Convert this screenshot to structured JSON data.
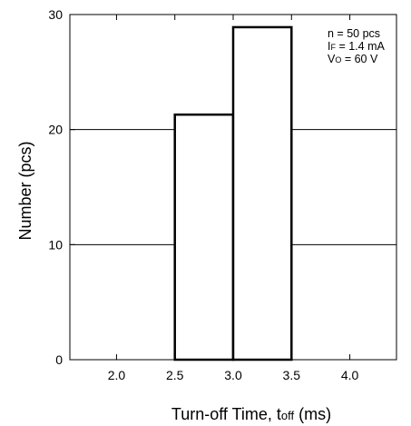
{
  "chart_data": {
    "type": "bar",
    "title": "",
    "xlabel": {
      "main": "Turn-off Time, t",
      "sub": "off",
      "unit": "(ms)"
    },
    "ylabel": "Number (pcs)",
    "xlim": [
      1.6,
      4.4
    ],
    "ylim": [
      0,
      30
    ],
    "xticks": [
      "2.0",
      "2.5",
      "3.0",
      "3.5",
      "4.0"
    ],
    "yticks": [
      "0",
      "10",
      "20",
      "30"
    ],
    "bins": [
      {
        "x0": 2.5,
        "x1": 3.0,
        "value": 21.3
      },
      {
        "x0": 3.0,
        "x1": 3.5,
        "value": 28.9
      }
    ],
    "annotations": [
      {
        "main": "n = 50 pcs"
      },
      {
        "main": "I",
        "sub": "F",
        "rest": " = 1.4 mA"
      },
      {
        "main": "V",
        "sub": "O",
        "rest": " = 60 V"
      }
    ],
    "grid": "horizontal",
    "legend": "none"
  }
}
